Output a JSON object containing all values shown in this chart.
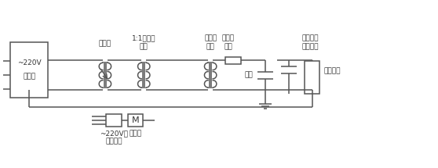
{
  "bg_color": "#ffffff",
  "line_color": "#555555",
  "text_color": "#333333",
  "fig_width": 5.58,
  "fig_height": 2.15,
  "dpi": 100,
  "labels": {
    "control_line1": "~220V",
    "control_line2": "控制台",
    "voltage_reg": "调压器",
    "iso_trans1": "1:1隔离变",
    "iso_trans2": "压器",
    "test_trans1": "试验变",
    "test_trans2": "压器",
    "hv_filter1": "高压滤",
    "hv_filter2": "波器",
    "no_pd1": "无局放耦",
    "no_pd2": "合电容器",
    "detect_imp": "检测阻抗",
    "test_sample": "试品",
    "filter_220_1": "~220V隔",
    "filter_220_2": "离滤波器",
    "pd_meter": "局放仪"
  }
}
